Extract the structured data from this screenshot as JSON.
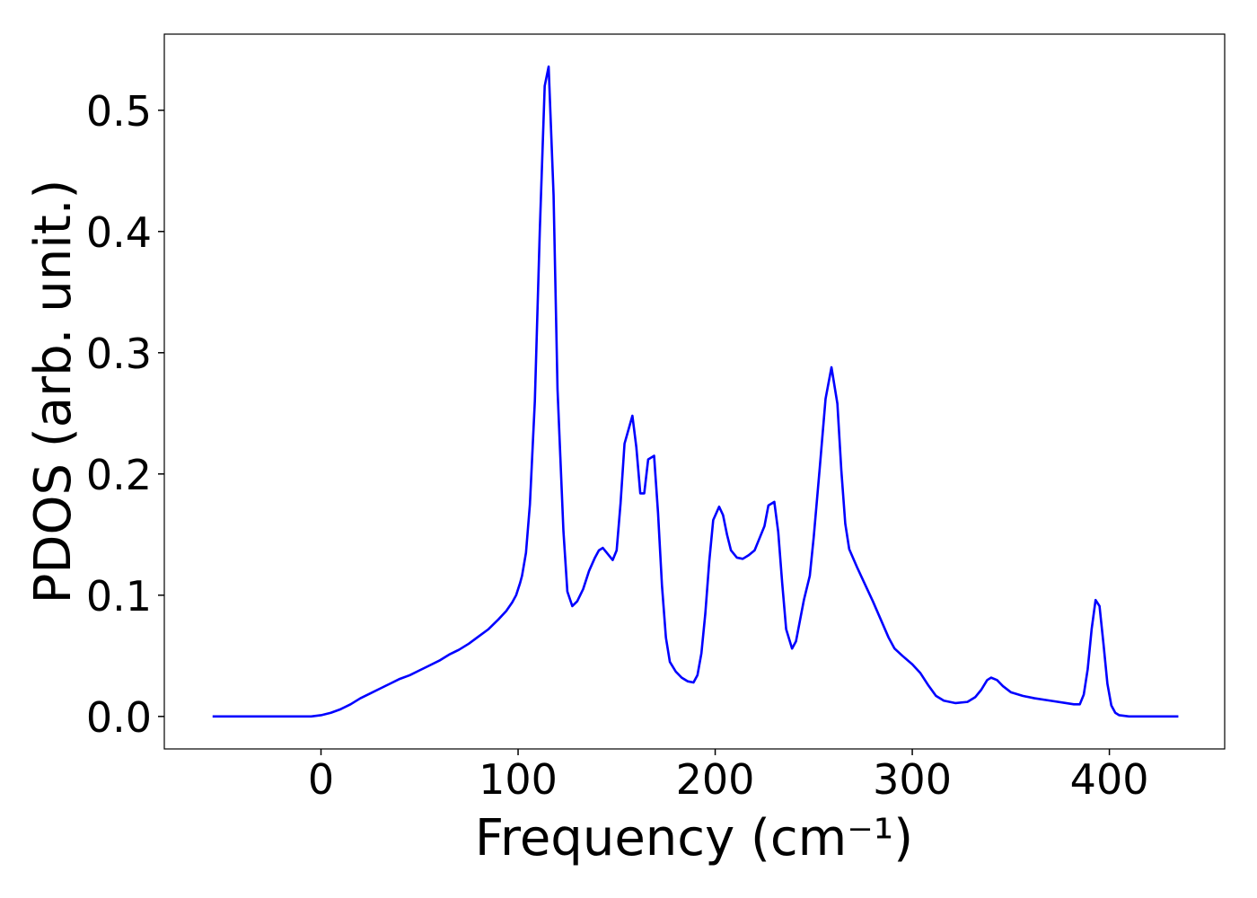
{
  "chart_data": {
    "type": "line",
    "xlabel": "Frequency (cm⁻¹)",
    "ylabel": "PDOS (arb. unit.)",
    "color": "#0000ff",
    "xlim": [
      -79.5,
      458.5
    ],
    "ylim": [
      -0.0268,
      0.5628
    ],
    "xticks": [
      0,
      100,
      200,
      300,
      400
    ],
    "yticks": [
      {
        "value": 0,
        "label": "0.0"
      },
      0.1,
      0.2,
      0.3,
      0.4,
      0.5
    ],
    "x": [
      -55,
      -5,
      0,
      5,
      10,
      15,
      20,
      25,
      30,
      35,
      40,
      45,
      50,
      55,
      60,
      65,
      70,
      75,
      80,
      85,
      90,
      94,
      97,
      99,
      101,
      102,
      104,
      106,
      108.5,
      111,
      113.5,
      115.5,
      118,
      120,
      123,
      125,
      127.5,
      130,
      133,
      136,
      139,
      141,
      143,
      145,
      148,
      150,
      152,
      154,
      158,
      160,
      162,
      164,
      166,
      169,
      171,
      173,
      175,
      177,
      180,
      183,
      186,
      189,
      191,
      193,
      195,
      197,
      199,
      202,
      204,
      206,
      208,
      211,
      214,
      217,
      220,
      222,
      225,
      227,
      230,
      232,
      234,
      236,
      239,
      241,
      243,
      245,
      248,
      250,
      253,
      256,
      259,
      262,
      264,
      266,
      268,
      272,
      276,
      280,
      284,
      288,
      291,
      295,
      300,
      304,
      308,
      312,
      316,
      322,
      328,
      332,
      335,
      338,
      340,
      343,
      346,
      350,
      356,
      362,
      370,
      378,
      382,
      385,
      387,
      389,
      391,
      393,
      395,
      397,
      399,
      401,
      403,
      405,
      410,
      435
    ],
    "values": [
      0,
      0,
      0.001,
      0.003,
      0.006,
      0.01,
      0.015,
      0.019,
      0.023,
      0.027,
      0.031,
      0.034,
      0.038,
      0.042,
      0.046,
      0.051,
      0.055,
      0.06,
      0.066,
      0.072,
      0.08,
      0.087,
      0.094,
      0.1,
      0.11,
      0.116,
      0.135,
      0.175,
      0.26,
      0.4,
      0.52,
      0.536,
      0.43,
      0.27,
      0.153,
      0.103,
      0.091,
      0.095,
      0.105,
      0.12,
      0.131,
      0.137,
      0.139,
      0.135,
      0.129,
      0.137,
      0.176,
      0.225,
      0.248,
      0.222,
      0.184,
      0.184,
      0.212,
      0.215,
      0.168,
      0.108,
      0.065,
      0.045,
      0.037,
      0.032,
      0.029,
      0.028,
      0.034,
      0.052,
      0.085,
      0.128,
      0.162,
      0.173,
      0.166,
      0.15,
      0.137,
      0.131,
      0.13,
      0.133,
      0.137,
      0.145,
      0.157,
      0.174,
      0.177,
      0.152,
      0.11,
      0.072,
      0.056,
      0.062,
      0.079,
      0.096,
      0.116,
      0.148,
      0.204,
      0.262,
      0.288,
      0.258,
      0.203,
      0.159,
      0.138,
      0.123,
      0.109,
      0.095,
      0.08,
      0.065,
      0.056,
      0.05,
      0.043,
      0.036,
      0.026,
      0.017,
      0.013,
      0.011,
      0.012,
      0.016,
      0.022,
      0.03,
      0.032,
      0.03,
      0.025,
      0.02,
      0.017,
      0.015,
      0.013,
      0.011,
      0.01,
      0.01,
      0.018,
      0.039,
      0.072,
      0.096,
      0.091,
      0.06,
      0.027,
      0.009,
      0.003,
      0.001,
      0,
      0
    ]
  }
}
